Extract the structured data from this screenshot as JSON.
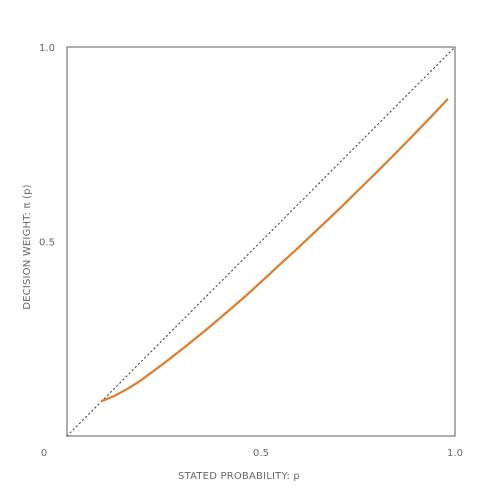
{
  "chart_data": {
    "type": "line",
    "title": "",
    "xlabel": "STATED PROBABILITY:  p",
    "ylabel": "DECISION WEIGHT:  π (p)",
    "xlim": [
      0,
      1
    ],
    "ylim": [
      0,
      1
    ],
    "x_ticks": [
      {
        "value": 0,
        "label": "0"
      },
      {
        "value": 0.5,
        "label": "0.5"
      },
      {
        "value": 1,
        "label": "1.0"
      }
    ],
    "y_ticks": [
      {
        "value": 0.5,
        "label": "0.5"
      },
      {
        "value": 1,
        "label": "1.0"
      }
    ],
    "grid": false,
    "legend": "none",
    "reference_line": {
      "style": "dotted",
      "color": "#555555",
      "x": [
        0,
        1
      ],
      "y": [
        0,
        1
      ]
    },
    "series": [
      {
        "color": "#e07b2a",
        "x": [
          0.09,
          0.12,
          0.15,
          0.18,
          0.2,
          0.25,
          0.3,
          0.35,
          0.4,
          0.45,
          0.5,
          0.55,
          0.6,
          0.65,
          0.7,
          0.75,
          0.8,
          0.85,
          0.9,
          0.95,
          0.98
        ],
        "y": [
          0.09,
          0.102,
          0.118,
          0.136,
          0.15,
          0.187,
          0.226,
          0.266,
          0.308,
          0.351,
          0.396,
          0.442,
          0.488,
          0.535,
          0.582,
          0.631,
          0.68,
          0.73,
          0.781,
          0.833,
          0.865
        ]
      }
    ]
  }
}
